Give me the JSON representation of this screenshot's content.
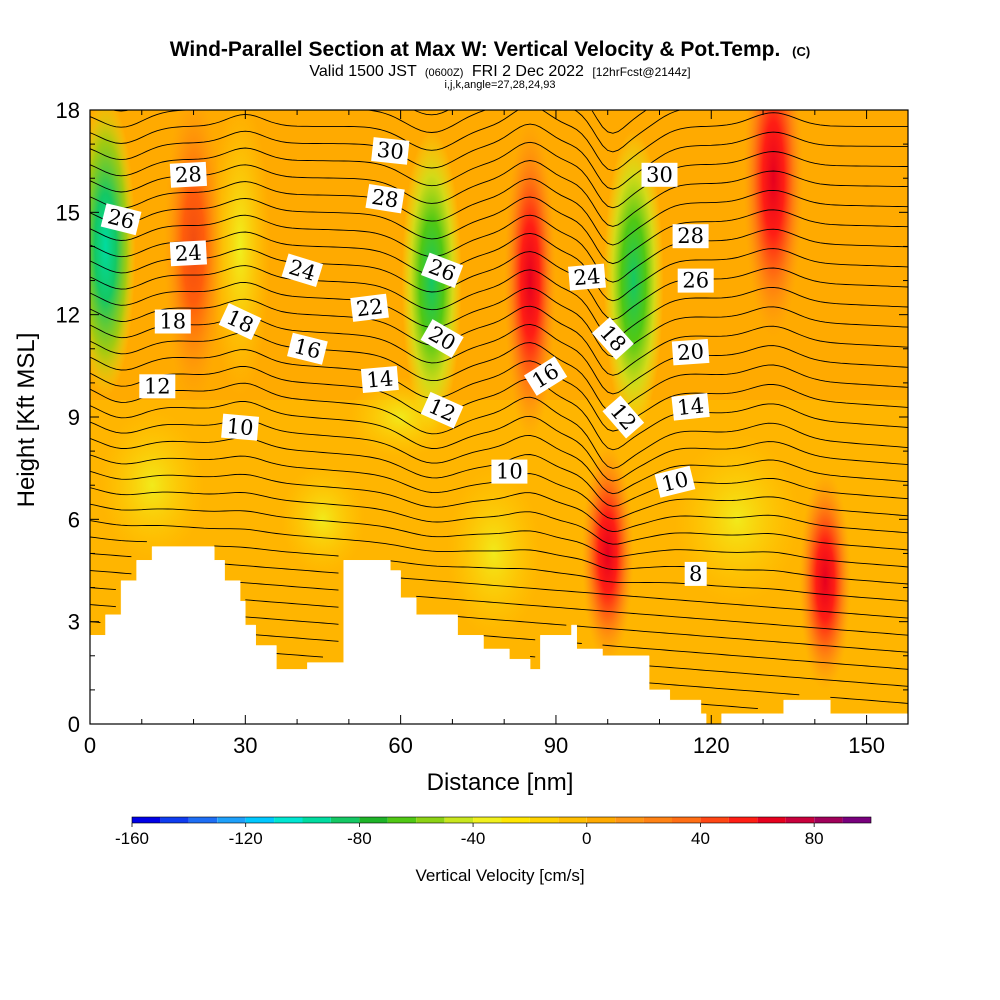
{
  "chart_data": {
    "type": "heatmap",
    "title": "Wind-Parallel Section at Max W: Vertical Velocity & Pot.Temp.",
    "title_mark": "(C)",
    "subtitle_valid": "Valid 1500 JST",
    "subtitle_utc": "(0600Z)",
    "subtitle_date": "FRI 2 Dec 2022",
    "subtitle_forecast": "[12hrFcst@2144z]",
    "subtitle_indices": "i,j,k,angle=27,28,24,93",
    "xlabel": "Distance [nm]",
    "ylabel": "Height [Kft MSL]",
    "xlim": [
      0,
      158
    ],
    "ylim": [
      0,
      18
    ],
    "x_ticks": [
      0,
      30,
      60,
      90,
      120,
      150
    ],
    "x_tick_labels": [
      "0",
      "30",
      "60",
      "90",
      "120",
      "150"
    ],
    "y_ticks": [
      0,
      3,
      6,
      9,
      12,
      15,
      18
    ],
    "y_tick_labels": [
      "0",
      "3",
      "6",
      "9",
      "12",
      "15",
      "18"
    ],
    "colorbar": {
      "label": "Vertical Velocity [cm/s]",
      "min": -160,
      "max": 100,
      "step": 10,
      "tick_values": [
        -160,
        -120,
        -80,
        -40,
        0,
        40,
        80
      ],
      "tick_labels": [
        "-160",
        "-120",
        "-80",
        "-40",
        "0",
        "40",
        "80"
      ],
      "colors": [
        "#0000e6",
        "#0f3cf0",
        "#1e6ef5",
        "#1ea0fa",
        "#00c8ff",
        "#00e6d2",
        "#00dca0",
        "#14c864",
        "#1eb428",
        "#50c814",
        "#8cd214",
        "#c8e61e",
        "#f0f01e",
        "#ffe600",
        "#ffd200",
        "#ffbe00",
        "#ffaa00",
        "#ff9614",
        "#ff8214",
        "#ff6e14",
        "#ff4614",
        "#ff1e14",
        "#e6001e",
        "#c8003c",
        "#a0005a",
        "#78007d"
      ]
    },
    "terrain_kft": [
      [
        0,
        2.6
      ],
      [
        3,
        3.2
      ],
      [
        6,
        4.2
      ],
      [
        9,
        4.8
      ],
      [
        12,
        5.2
      ],
      [
        24,
        4.8
      ],
      [
        26,
        4.2
      ],
      [
        29,
        3.6
      ],
      [
        30,
        2.9
      ],
      [
        32,
        2.3
      ],
      [
        36,
        1.6
      ],
      [
        42,
        1.8
      ],
      [
        49,
        4.8
      ],
      [
        58,
        4.5
      ],
      [
        60,
        3.7
      ],
      [
        63,
        3.2
      ],
      [
        67,
        3.2
      ],
      [
        71,
        2.6
      ],
      [
        76,
        2.2
      ],
      [
        81,
        1.9
      ],
      [
        85,
        1.6
      ],
      [
        87,
        2.6
      ],
      [
        93,
        2.9
      ],
      [
        94,
        2.2
      ],
      [
        99,
        2.0
      ],
      [
        108,
        1.0
      ],
      [
        112,
        0.7
      ],
      [
        118,
        0.3
      ],
      [
        119,
        0.0
      ],
      [
        122,
        0.3
      ],
      [
        133,
        0.3
      ],
      [
        134,
        0.7
      ],
      [
        143,
        0.3
      ],
      [
        158,
        0.3
      ]
    ],
    "updrafts": [
      {
        "x": 85,
        "z": 13,
        "value": 75
      },
      {
        "x": 100,
        "z": 5,
        "value": 65
      },
      {
        "x": 142,
        "z": 4.2,
        "value": 65
      },
      {
        "x": 132,
        "z": 16,
        "value": 55
      },
      {
        "x": 20,
        "z": 14,
        "value": 25
      }
    ],
    "downdrafts": [
      {
        "x": 3,
        "z": 14,
        "value": -130
      },
      {
        "x": 66,
        "z": 13,
        "value": -75
      },
      {
        "x": 105,
        "z": 13,
        "value": -75
      },
      {
        "x": 29,
        "z": 14,
        "value": -40
      }
    ],
    "theta_contour_labels": [
      {
        "value": "30",
        "x": 58,
        "z": 16.8,
        "angle": 6
      },
      {
        "value": "30",
        "x": 110,
        "z": 16.1,
        "angle": 0
      },
      {
        "value": "28",
        "x": 19,
        "z": 16.1,
        "angle": -3
      },
      {
        "value": "28",
        "x": 57,
        "z": 15.4,
        "angle": 9
      },
      {
        "value": "28",
        "x": 116,
        "z": 14.3,
        "angle": 0
      },
      {
        "value": "26",
        "x": 6,
        "z": 14.8,
        "angle": 14
      },
      {
        "value": "26",
        "x": 68,
        "z": 13.3,
        "angle": 21
      },
      {
        "value": "26",
        "x": 117,
        "z": 13.0,
        "angle": 0
      },
      {
        "value": "24",
        "x": 19,
        "z": 13.8,
        "angle": -3
      },
      {
        "value": "24",
        "x": 41,
        "z": 13.3,
        "angle": 17
      },
      {
        "value": "24",
        "x": 96,
        "z": 13.1,
        "angle": -5
      },
      {
        "value": "22",
        "x": 54,
        "z": 12.2,
        "angle": -7
      },
      {
        "value": "20",
        "x": 68,
        "z": 11.3,
        "angle": 30
      },
      {
        "value": "20",
        "x": 116,
        "z": 10.9,
        "angle": -4
      },
      {
        "value": "18",
        "x": 16,
        "z": 11.8,
        "angle": 0
      },
      {
        "value": "18",
        "x": 29,
        "z": 11.8,
        "angle": 25
      },
      {
        "value": "18",
        "x": 101,
        "z": 11.3,
        "angle": 48
      },
      {
        "value": "16",
        "x": 42,
        "z": 11.0,
        "angle": 14
      },
      {
        "value": "16",
        "x": 88,
        "z": 10.2,
        "angle": -32
      },
      {
        "value": "14",
        "x": 56,
        "z": 10.1,
        "angle": -5
      },
      {
        "value": "14",
        "x": 116,
        "z": 9.3,
        "angle": -6
      },
      {
        "value": "12",
        "x": 13,
        "z": 9.9,
        "angle": 0
      },
      {
        "value": "12",
        "x": 68,
        "z": 9.2,
        "angle": 24
      },
      {
        "value": "12",
        "x": 103,
        "z": 9.0,
        "angle": 49
      },
      {
        "value": "10",
        "x": 29,
        "z": 8.7,
        "angle": 5
      },
      {
        "value": "10",
        "x": 81,
        "z": 7.4,
        "angle": 0
      },
      {
        "value": "10",
        "x": 113,
        "z": 7.1,
        "angle": -14
      },
      {
        "value": "8",
        "x": 117,
        "z": 4.4,
        "angle": 0
      }
    ]
  }
}
